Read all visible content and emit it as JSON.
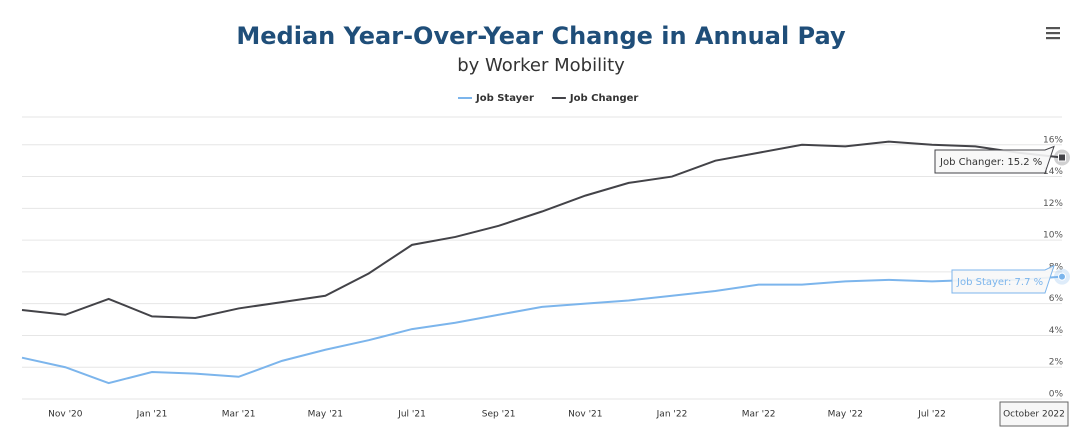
{
  "chart_data": {
    "type": "line",
    "title": "Median Year-Over-Year Change in Annual Pay",
    "subtitle": "by Worker Mobility",
    "categories": [
      null,
      "Nov '20",
      null,
      "Jan '21",
      null,
      "Mar '21",
      null,
      "May '21",
      null,
      "Jul '21",
      null,
      "Sep '21",
      null,
      "Nov '21",
      null,
      "Jan '22",
      null,
      "Mar '22",
      null,
      "May '22",
      null,
      "Jul '22",
      null,
      null,
      null
    ],
    "series": [
      {
        "name": "Job Stayer",
        "color": "#7cb5ec",
        "values": [
          2.6,
          2.0,
          1.0,
          1.7,
          1.6,
          1.4,
          2.4,
          3.1,
          3.7,
          4.4,
          4.8,
          5.3,
          5.8,
          6.0,
          6.2,
          6.5,
          6.8,
          7.2,
          7.2,
          7.4,
          7.5,
          7.4,
          7.5,
          7.5,
          7.7
        ]
      },
      {
        "name": "Job Changer",
        "color": "#434348",
        "values": [
          5.6,
          5.3,
          6.3,
          5.2,
          5.1,
          5.7,
          6.1,
          6.5,
          7.9,
          9.7,
          10.2,
          10.9,
          11.8,
          12.8,
          13.6,
          14.0,
          15.0,
          15.5,
          16.0,
          15.9,
          16.2,
          16.0,
          15.9,
          15.5,
          15.2
        ]
      }
    ],
    "ylim": [
      0,
      18
    ],
    "yticks": [
      {
        "value": 0,
        "label": "0%"
      },
      {
        "value": 2,
        "label": "2%"
      },
      {
        "value": 4,
        "label": "4%"
      },
      {
        "value": 6,
        "label": "6%"
      },
      {
        "value": 8,
        "label": "8%"
      },
      {
        "value": 10,
        "label": "10%"
      },
      {
        "value": 12,
        "label": "12%"
      },
      {
        "value": 14,
        "label": "14%"
      },
      {
        "value": 16,
        "label": "16%"
      }
    ],
    "grid": true,
    "tooltip": {
      "x": "October 2022",
      "labels": [
        "Job Stayer: 7.7 %",
        "Job Changer: 15.2 %"
      ]
    }
  }
}
